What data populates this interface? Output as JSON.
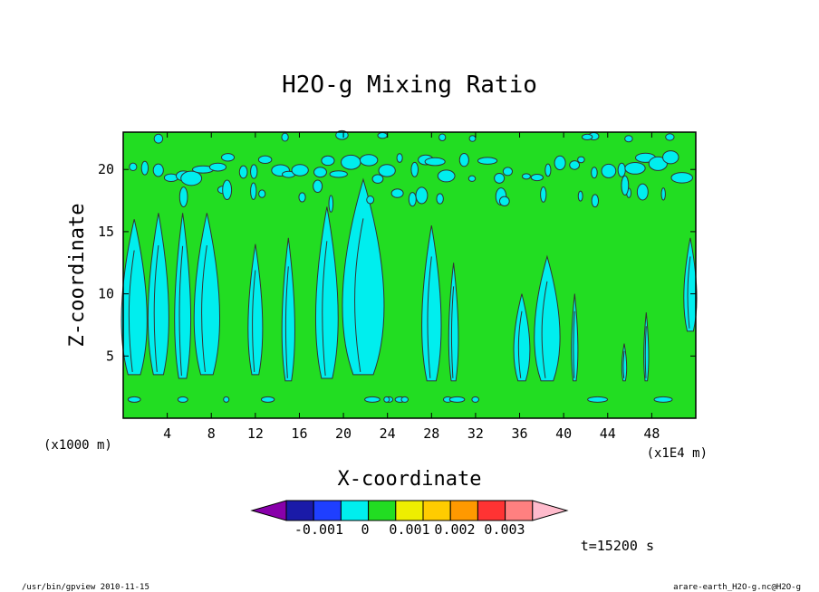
{
  "chart_data": {
    "type": "heatmap",
    "title": "H2O-g Mixing Ratio",
    "xlabel": "X-coordinate",
    "ylabel": "Z-coordinate",
    "x_unit_left": "(x1000 m)",
    "x_unit_right": "(x1E4 m)",
    "xlim": [
      0,
      52
    ],
    "ylim": [
      0,
      23
    ],
    "x_ticks": [
      4,
      8,
      12,
      16,
      20,
      24,
      28,
      32,
      36,
      40,
      44,
      48
    ],
    "x_tick_labels": [
      "4",
      "8",
      "12",
      "16",
      "20",
      "24",
      "28",
      "32",
      "36",
      "40",
      "44",
      "48"
    ],
    "y_ticks": [
      5,
      10,
      15,
      20
    ],
    "y_tick_labels": [
      "5",
      "10",
      "15",
      "20"
    ],
    "background_level_color": "#22dd22",
    "negative_level_color": "#00eeee",
    "contour_color": "#333333",
    "colorbar": {
      "colors": [
        "#1a1aa8",
        "#1f3fff",
        "#00eeee",
        "#22dd22",
        "#eeee00",
        "#ffcc00",
        "#ff9900",
        "#ff3333",
        "#ff8080"
      ],
      "under_color": "#8800aa",
      "over_color": "#ffbbcc",
      "tick_labels": [
        "-0.001",
        "0",
        "0.001",
        "0.002",
        "0.003"
      ]
    },
    "plumes": [
      {
        "x": 1.0,
        "w": 1.6,
        "base": 3.5,
        "top": 16.0
      },
      {
        "x": 3.2,
        "w": 1.3,
        "base": 3.5,
        "top": 16.5
      },
      {
        "x": 5.4,
        "w": 1.0,
        "base": 3.2,
        "top": 16.5
      },
      {
        "x": 7.6,
        "w": 1.6,
        "base": 3.5,
        "top": 16.5
      },
      {
        "x": 12.0,
        "w": 0.9,
        "base": 3.5,
        "top": 14.0
      },
      {
        "x": 15.0,
        "w": 0.8,
        "base": 3.0,
        "top": 14.5
      },
      {
        "x": 18.5,
        "w": 1.4,
        "base": 3.2,
        "top": 17.0
      },
      {
        "x": 21.8,
        "w": 2.6,
        "base": 3.5,
        "top": 19.2
      },
      {
        "x": 28.0,
        "w": 1.2,
        "base": 3.0,
        "top": 15.5
      },
      {
        "x": 30.0,
        "w": 0.6,
        "base": 3.0,
        "top": 12.5
      },
      {
        "x": 36.2,
        "w": 1.0,
        "base": 3.0,
        "top": 10.0
      },
      {
        "x": 38.5,
        "w": 1.6,
        "base": 3.0,
        "top": 13.0
      },
      {
        "x": 41.0,
        "w": 0.4,
        "base": 3.0,
        "top": 10.0
      },
      {
        "x": 45.5,
        "w": 0.3,
        "base": 3.0,
        "top": 6.0
      },
      {
        "x": 47.5,
        "w": 0.3,
        "base": 3.0,
        "top": 8.5
      },
      {
        "x": 51.5,
        "w": 0.8,
        "base": 7.0,
        "top": 14.5
      }
    ]
  },
  "time_label": "t=15200 s",
  "footer": {
    "left": "/usr/bin/gpview  2010-11-15",
    "right": "arare-earth_H2O-g.nc@H2O-g"
  }
}
